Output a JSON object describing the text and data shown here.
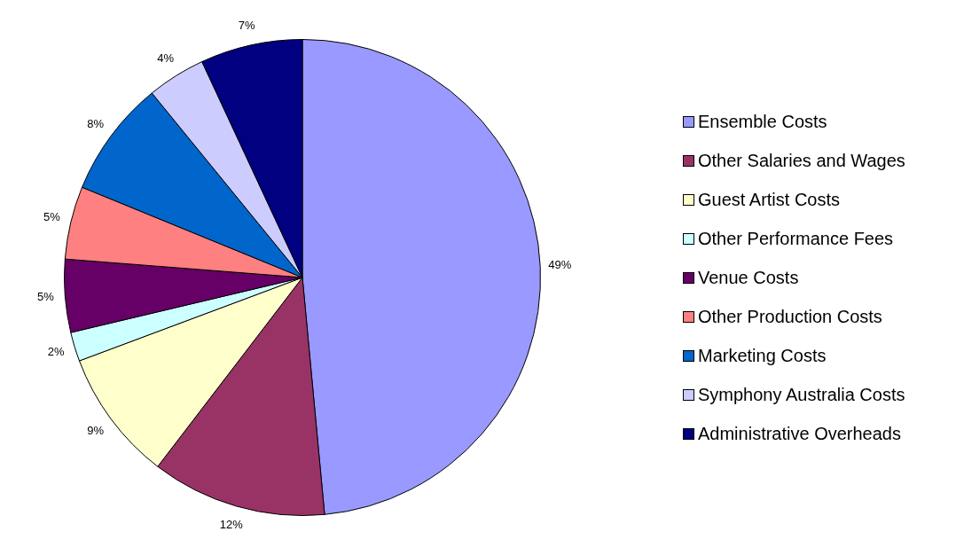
{
  "chart_data": {
    "type": "pie",
    "categories": [
      "Ensemble Costs",
      "Other Salaries and Wages",
      "Guest Artist Costs",
      "Other Performance Fees",
      "Venue Costs",
      "Other Production Costs",
      "Marketing Costs",
      "Symphony Australia Costs",
      "Administrative Overheads"
    ],
    "values": [
      49,
      12,
      9,
      2,
      5,
      5,
      8,
      4,
      7
    ],
    "colors": [
      "#9999ff",
      "#993366",
      "#ffffcc",
      "#ccffff",
      "#660066",
      "#ff8080",
      "#0066cc",
      "#ccccff",
      "#000080"
    ],
    "value_labels": [
      "49%",
      "12%",
      "9%",
      "2%",
      "5%",
      "5%",
      "8%",
      "4%",
      "7%"
    ],
    "legend": "right"
  }
}
